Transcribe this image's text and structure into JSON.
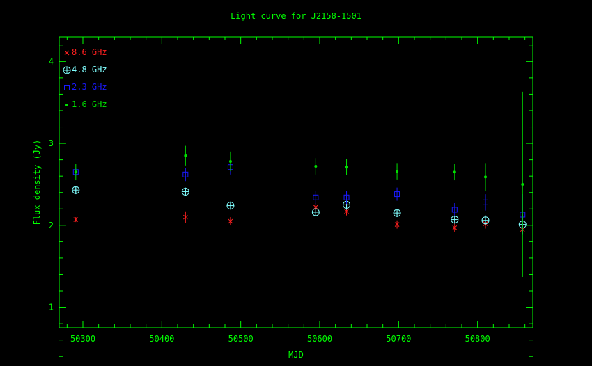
{
  "chart_data": {
    "type": "scatter",
    "title": "Light curve for J2158-1501",
    "xlabel": "MJD",
    "ylabel": "Flux density (Jy)",
    "xlim": [
      50270,
      50870
    ],
    "ylim": [
      0.75,
      4.3
    ],
    "xticks": [
      50300,
      50400,
      50500,
      50600,
      50700,
      50800
    ],
    "yticks": [
      1,
      2,
      3,
      4
    ],
    "legend_position": "top-left",
    "axis_color": "#00ff00",
    "series": [
      {
        "name": "8.6 GHz",
        "marker": "x",
        "color": "#ff2020",
        "points": [
          {
            "x": 50291,
            "y": 2.07,
            "err": 0.03
          },
          {
            "x": 50430,
            "y": 2.1,
            "err": 0.07
          },
          {
            "x": 50487,
            "y": 2.05,
            "err": 0.05
          },
          {
            "x": 50595,
            "y": 2.22,
            "err": 0.05
          },
          {
            "x": 50634,
            "y": 2.17,
            "err": 0.05
          },
          {
            "x": 50698,
            "y": 2.01,
            "err": 0.05
          },
          {
            "x": 50771,
            "y": 1.97,
            "err": 0.05
          },
          {
            "x": 50810,
            "y": 2.02,
            "err": 0.06
          },
          {
            "x": 50857,
            "y": 1.95,
            "err": 0.05
          }
        ]
      },
      {
        "name": "4.8 GHz",
        "marker": "circle-plus",
        "color": "#80ffff",
        "points": [
          {
            "x": 50291,
            "y": 2.43,
            "err": 0.05
          },
          {
            "x": 50430,
            "y": 2.41,
            "err": 0.05
          },
          {
            "x": 50487,
            "y": 2.24,
            "err": 0.05
          },
          {
            "x": 50595,
            "y": 2.16,
            "err": 0.05
          },
          {
            "x": 50634,
            "y": 2.25,
            "err": 0.06
          },
          {
            "x": 50698,
            "y": 2.15,
            "err": 0.05
          },
          {
            "x": 50771,
            "y": 2.07,
            "err": 0.05
          },
          {
            "x": 50810,
            "y": 2.06,
            "err": 0.06
          },
          {
            "x": 50857,
            "y": 2.01,
            "err": 0.12
          }
        ]
      },
      {
        "name": "2.3 GHz",
        "marker": "square",
        "color": "#1a1aff",
        "points": [
          {
            "x": 50291,
            "y": 2.65,
            "err": 0.05
          },
          {
            "x": 50430,
            "y": 2.62,
            "err": 0.08
          },
          {
            "x": 50487,
            "y": 2.71,
            "err": 0.09
          },
          {
            "x": 50595,
            "y": 2.34,
            "err": 0.08
          },
          {
            "x": 50634,
            "y": 2.34,
            "err": 0.08
          },
          {
            "x": 50698,
            "y": 2.38,
            "err": 0.08
          },
          {
            "x": 50771,
            "y": 2.19,
            "err": 0.08
          },
          {
            "x": 50810,
            "y": 2.28,
            "err": 0.1
          },
          {
            "x": 50857,
            "y": 2.13,
            "err": 0.25
          }
        ]
      },
      {
        "name": "1.6 GHz",
        "marker": "dot",
        "color": "#00e000",
        "points": [
          {
            "x": 50291,
            "y": 2.65,
            "err": 0.1
          },
          {
            "x": 50430,
            "y": 2.85,
            "err": 0.12
          },
          {
            "x": 50487,
            "y": 2.78,
            "err": 0.12
          },
          {
            "x": 50595,
            "y": 2.72,
            "err": 0.1
          },
          {
            "x": 50634,
            "y": 2.71,
            "err": 0.1
          },
          {
            "x": 50698,
            "y": 2.66,
            "err": 0.1
          },
          {
            "x": 50771,
            "y": 2.65,
            "err": 0.1
          },
          {
            "x": 50810,
            "y": 2.59,
            "err": 0.17
          },
          {
            "x": 50857,
            "y": 2.5,
            "err": 1.13
          }
        ]
      }
    ]
  }
}
